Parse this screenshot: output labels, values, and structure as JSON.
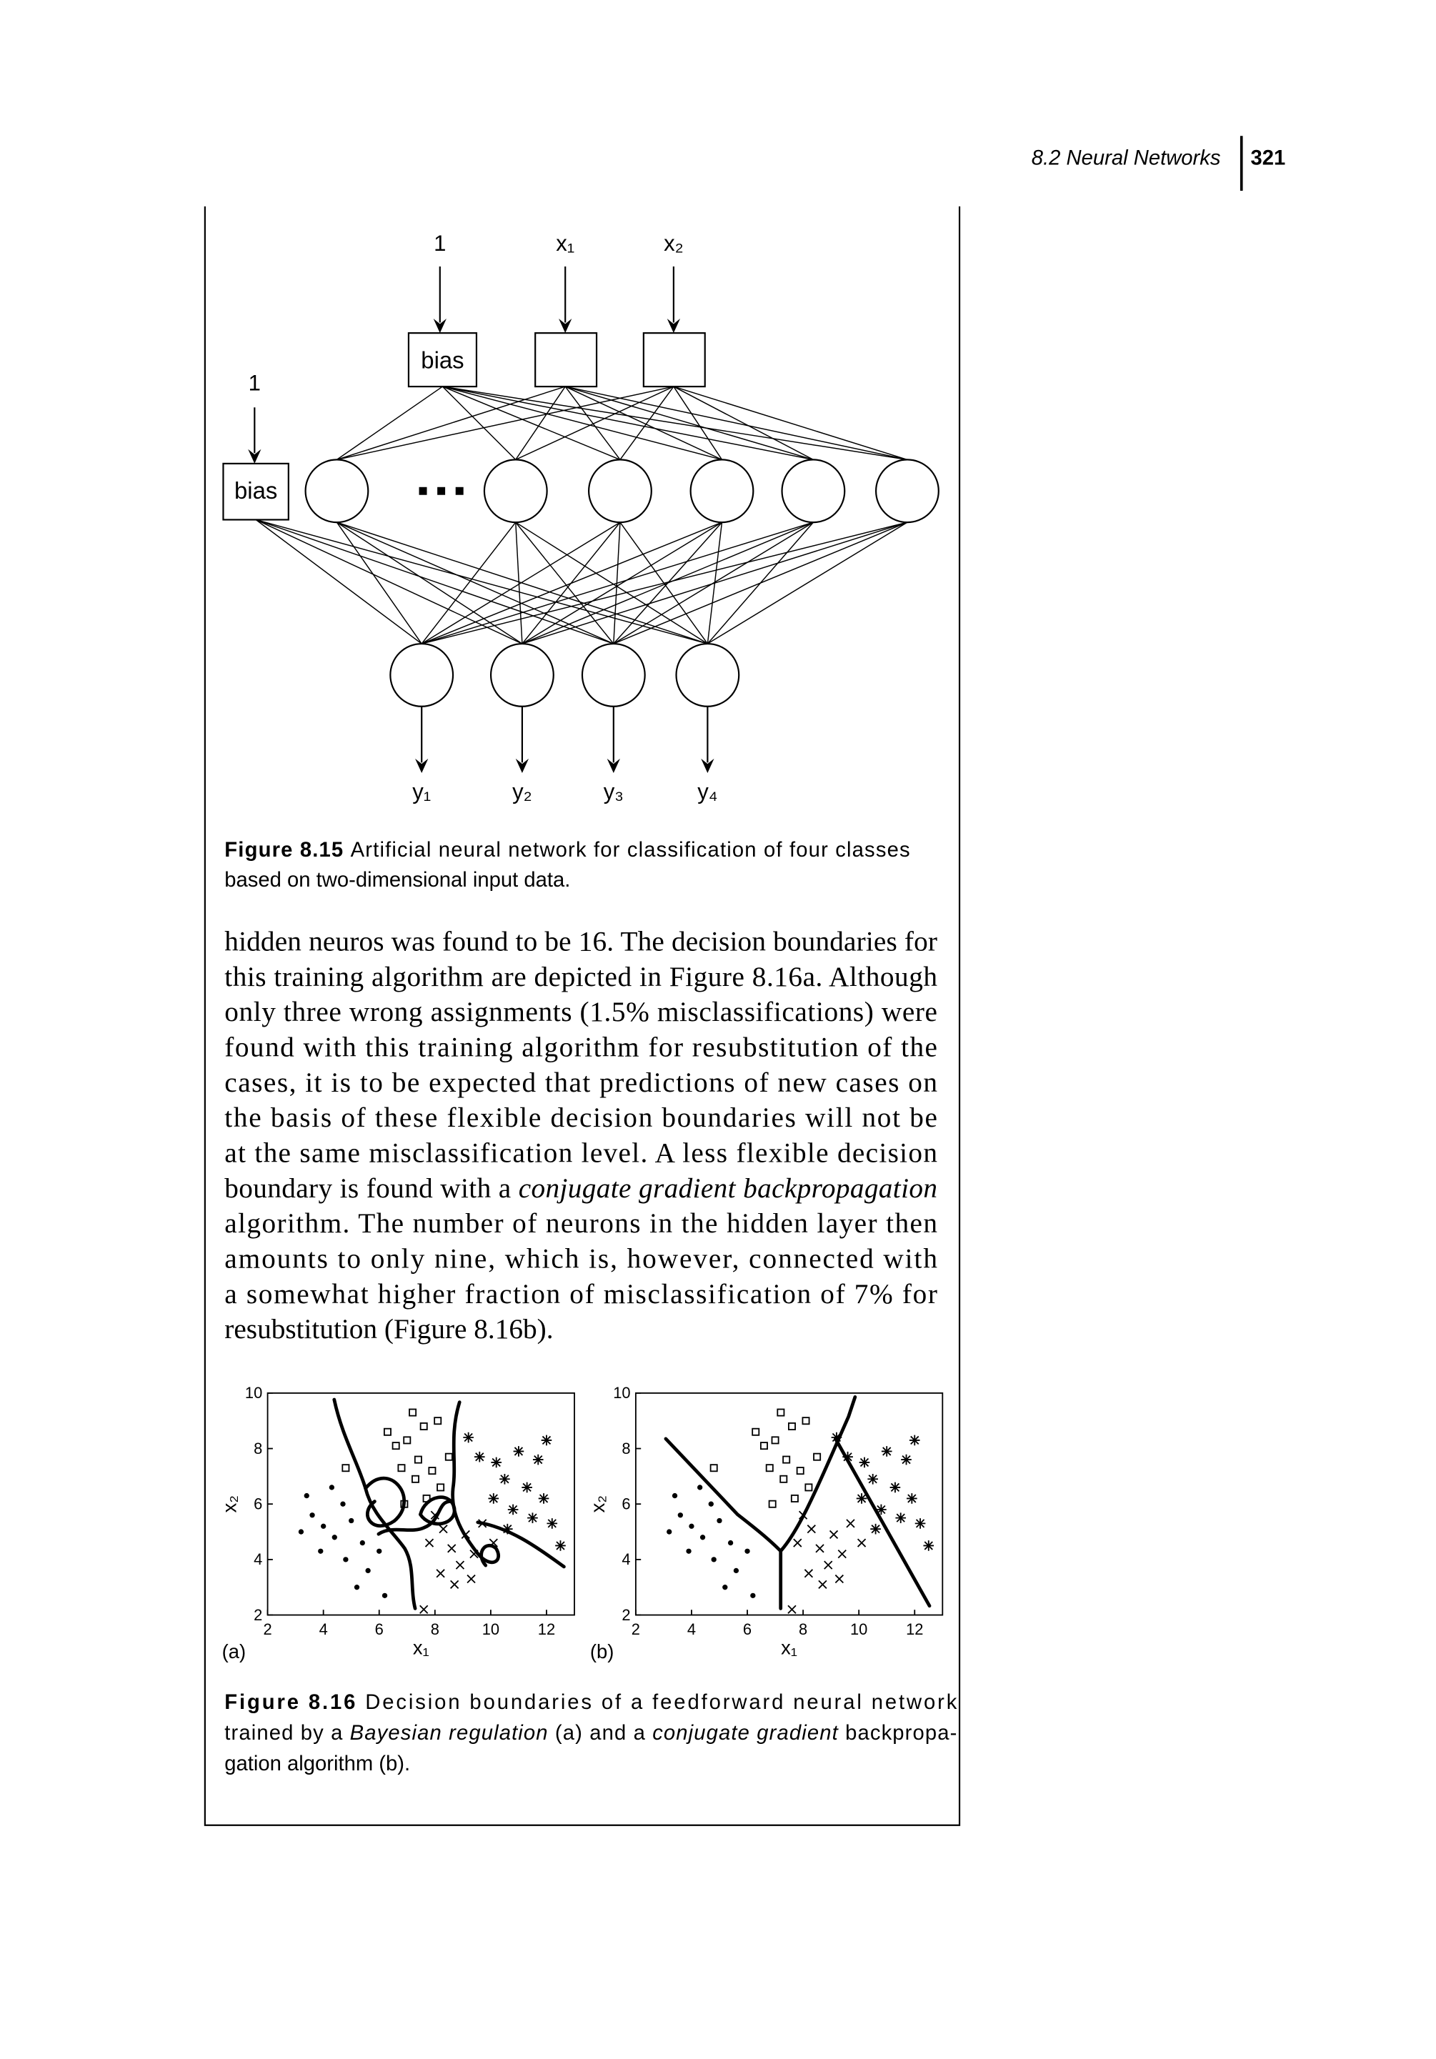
{
  "header": {
    "section": "8.2 Neural Networks",
    "page": "321"
  },
  "figure_8_15": {
    "input_labels": [
      "1",
      "x₁",
      "x₂"
    ],
    "input_bias_label": "bias",
    "hidden_bias_input": "1",
    "hidden_bias_label": "bias",
    "outputs": [
      "y₁",
      "y₂",
      "y₃",
      "y₄"
    ],
    "caption": {
      "label": "Figure 8.15",
      "lines": [
        [
          "Artificial neural network for classification of four classes"
        ],
        [
          "based on two-dimensional input data."
        ]
      ]
    }
  },
  "paragraph": [
    [
      "hidden neuros was found to be 16. The decision boundaries for"
    ],
    [
      "this training algorithm are depicted in Figure 8.16a. Although"
    ],
    [
      "only three wrong assignments (1.5% misclassifications) were"
    ],
    [
      "found with this training algorithm for resubstitution of the"
    ],
    [
      "cases, it is to be expected that predictions of new cases on"
    ],
    [
      "the basis of these flexible decision boundaries will not be"
    ],
    [
      "at the same misclassification level. A less flexible decision"
    ],
    [
      "boundary is found with a",
      {
        "text": "conjugate gradient backpropagation",
        "style": "italic"
      }
    ],
    [
      "algorithm. The number of neurons in the hidden layer then"
    ],
    [
      "amounts to only nine, which is, however, connected with"
    ],
    [
      "a somewhat higher fraction of misclassification of 7% for"
    ],
    [
      "resubstitution (Figure 8.16b)."
    ]
  ],
  "chart_data": [
    {
      "type": "scatter",
      "panel_label": "(a)",
      "x_label": "x₁",
      "y_label": "x₂",
      "xlim": [
        2,
        13
      ],
      "ylim": [
        2,
        10
      ],
      "xticks": [
        2,
        4,
        6,
        8,
        10,
        12
      ],
      "yticks": [
        2,
        4,
        6,
        8,
        10
      ],
      "series": [
        {
          "marker": "square",
          "color": "#000000",
          "x": [
            6.3,
            6.6,
            7,
            7.2,
            7.6,
            8.1,
            7.4,
            7.9,
            8.5,
            6.8,
            7.3,
            8.2,
            6.9,
            7.7,
            4.8
          ],
          "values": [
            8.6,
            8.1,
            8.3,
            9.3,
            8.8,
            9,
            7.6,
            7.2,
            7.7,
            7.3,
            6.9,
            6.6,
            6,
            6.2,
            7.3
          ]
        },
        {
          "marker": "dot",
          "color": "#000000",
          "x": [
            3.2,
            3.6,
            4,
            4.4,
            3.9,
            4.7,
            5,
            5.4,
            4.8,
            5.6,
            6,
            5.2,
            6.2,
            3.4,
            4.3
          ],
          "values": [
            5,
            5.6,
            5.2,
            4.8,
            4.3,
            6,
            5.4,
            4.6,
            4,
            3.6,
            4.3,
            3,
            2.7,
            6.3,
            6.6
          ]
        },
        {
          "marker": "cross",
          "color": "#000000",
          "x": [
            7.8,
            8.3,
            8.6,
            9.1,
            8.9,
            9.4,
            8.2,
            9.7,
            10.1,
            8.7,
            7.6,
            8,
            9.3
          ],
          "values": [
            4.6,
            5.1,
            4.4,
            4.9,
            3.8,
            4.2,
            3.5,
            5.3,
            4.6,
            3.1,
            2.2,
            5.6,
            3.3
          ]
        },
        {
          "marker": "asterisk",
          "color": "#000000",
          "x": [
            9.6,
            10.2,
            11,
            11.7,
            10.5,
            11.3,
            11.9,
            10.1,
            10.8,
            11.5,
            12.2,
            9.2,
            12,
            10.6,
            12.5
          ],
          "values": [
            7.7,
            7.5,
            7.9,
            7.6,
            6.9,
            6.6,
            6.2,
            6.2,
            5.8,
            5.5,
            5.3,
            8.4,
            8.3,
            5.1,
            4.5
          ]
        }
      ]
    },
    {
      "type": "scatter",
      "panel_label": "(b)",
      "x_label": "x₁",
      "y_label": "x₂",
      "xlim": [
        2,
        13
      ],
      "ylim": [
        2,
        10
      ],
      "xticks": [
        2,
        4,
        6,
        8,
        10,
        12
      ],
      "yticks": [
        2,
        4,
        6,
        8,
        10
      ],
      "series": [
        {
          "marker": "square",
          "color": "#000000",
          "x": [
            6.3,
            6.6,
            7,
            7.2,
            7.6,
            8.1,
            7.4,
            7.9,
            8.5,
            6.8,
            7.3,
            8.2,
            6.9,
            7.7,
            4.8
          ],
          "values": [
            8.6,
            8.1,
            8.3,
            9.3,
            8.8,
            9,
            7.6,
            7.2,
            7.7,
            7.3,
            6.9,
            6.6,
            6,
            6.2,
            7.3
          ]
        },
        {
          "marker": "dot",
          "color": "#000000",
          "x": [
            3.2,
            3.6,
            4,
            4.4,
            3.9,
            4.7,
            5,
            5.4,
            4.8,
            5.6,
            6,
            5.2,
            6.2,
            3.4,
            4.3
          ],
          "values": [
            5,
            5.6,
            5.2,
            4.8,
            4.3,
            6,
            5.4,
            4.6,
            4,
            3.6,
            4.3,
            3,
            2.7,
            6.3,
            6.6
          ]
        },
        {
          "marker": "cross",
          "color": "#000000",
          "x": [
            7.8,
            8.3,
            8.6,
            9.1,
            8.9,
            9.4,
            8.2,
            9.7,
            10.1,
            8.7,
            7.6,
            8,
            9.3
          ],
          "values": [
            4.6,
            5.1,
            4.4,
            4.9,
            3.8,
            4.2,
            3.5,
            5.3,
            4.6,
            3.1,
            2.2,
            5.6,
            3.3
          ]
        },
        {
          "marker": "asterisk",
          "color": "#000000",
          "x": [
            9.6,
            10.2,
            11,
            11.7,
            10.5,
            11.3,
            11.9,
            10.1,
            10.8,
            11.5,
            12.2,
            9.2,
            12,
            10.6,
            12.5
          ],
          "values": [
            7.7,
            7.5,
            7.9,
            7.6,
            6.9,
            6.6,
            6.2,
            6.2,
            5.8,
            5.5,
            5.3,
            8.4,
            8.3,
            5.1,
            4.5
          ]
        }
      ]
    }
  ],
  "figure_8_16_caption": {
    "label": "Figure 8.16",
    "lines": [
      [
        "Decision boundaries of a feedforward neural network"
      ],
      [
        "trained by a",
        {
          "text": "Bayesian regulation",
          "style": "italic"
        },
        "(a) and a",
        {
          "text": "conjugate gradient",
          "style": "italic"
        },
        "backpropa-"
      ],
      [
        "gation algorithm (b)."
      ]
    ]
  }
}
